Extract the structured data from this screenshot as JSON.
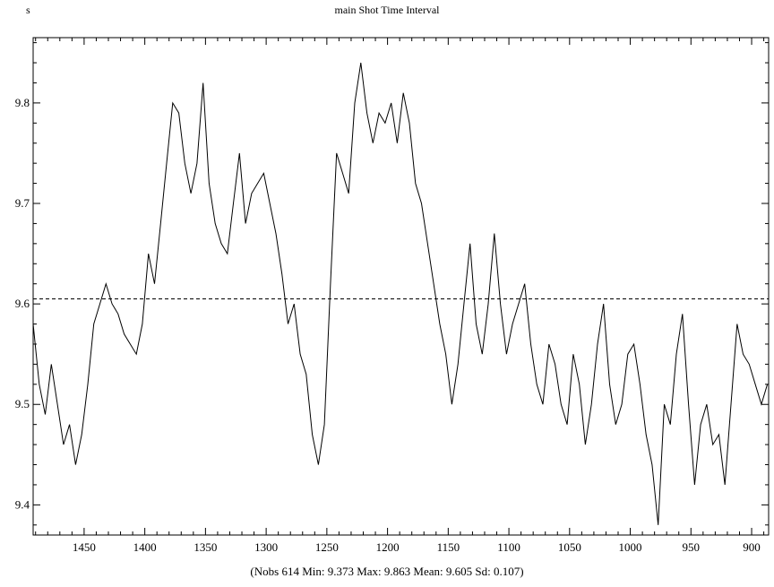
{
  "chart_data": {
    "type": "line",
    "title": "main Shot Time Interval",
    "ylabel": "s",
    "xlabel": "",
    "footer": "(Nobs 614 Min: 9.373 Max: 9.863 Mean: 9.605 Sd: 0.107)",
    "xlim": [
      1492,
      886
    ],
    "ylim": [
      9.37,
      9.865
    ],
    "x_ticks": [
      1450,
      1400,
      1350,
      1300,
      1250,
      1200,
      1150,
      1100,
      1050,
      1000,
      950,
      900
    ],
    "y_ticks": [
      9.4,
      9.5,
      9.6,
      9.7,
      9.8
    ],
    "mean_line": 9.605,
    "series": [
      {
        "color": "#000000",
        "x": [
          1492,
          1487,
          1482,
          1477,
          1472,
          1467,
          1462,
          1457,
          1452,
          1447,
          1442,
          1437,
          1432,
          1427,
          1422,
          1417,
          1412,
          1407,
          1402,
          1397,
          1392,
          1387,
          1382,
          1377,
          1372,
          1367,
          1362,
          1357,
          1352,
          1347,
          1342,
          1337,
          1332,
          1327,
          1322,
          1317,
          1312,
          1307,
          1302,
          1297,
          1292,
          1287,
          1282,
          1277,
          1272,
          1267,
          1262,
          1257,
          1252,
          1247,
          1242,
          1237,
          1232,
          1227,
          1222,
          1217,
          1212,
          1207,
          1202,
          1197,
          1192,
          1187,
          1182,
          1177,
          1172,
          1167,
          1162,
          1157,
          1152,
          1147,
          1142,
          1137,
          1132,
          1127,
          1122,
          1117,
          1112,
          1107,
          1102,
          1097,
          1092,
          1087,
          1082,
          1077,
          1072,
          1067,
          1062,
          1057,
          1052,
          1047,
          1042,
          1037,
          1032,
          1027,
          1022,
          1017,
          1012,
          1007,
          1002,
          997,
          992,
          987,
          982,
          977,
          972,
          967,
          962,
          957,
          952,
          947,
          942,
          937,
          932,
          927,
          922,
          917,
          912,
          907,
          902,
          897,
          892,
          887
        ],
        "values": [
          9.58,
          9.52,
          9.49,
          9.54,
          9.5,
          9.46,
          9.48,
          9.44,
          9.47,
          9.52,
          9.58,
          9.6,
          9.62,
          9.6,
          9.59,
          9.57,
          9.56,
          9.55,
          9.58,
          9.65,
          9.62,
          9.68,
          9.74,
          9.8,
          9.79,
          9.74,
          9.71,
          9.74,
          9.82,
          9.72,
          9.68,
          9.66,
          9.65,
          9.7,
          9.75,
          9.68,
          9.71,
          9.72,
          9.73,
          9.7,
          9.67,
          9.63,
          9.58,
          9.6,
          9.55,
          9.53,
          9.47,
          9.44,
          9.48,
          9.62,
          9.75,
          9.73,
          9.71,
          9.8,
          9.84,
          9.79,
          9.76,
          9.79,
          9.78,
          9.8,
          9.76,
          9.81,
          9.78,
          9.72,
          9.7,
          9.66,
          9.62,
          9.58,
          9.55,
          9.5,
          9.54,
          9.6,
          9.66,
          9.58,
          9.55,
          9.6,
          9.67,
          9.6,
          9.55,
          9.58,
          9.6,
          9.62,
          9.56,
          9.52,
          9.5,
          9.56,
          9.54,
          9.5,
          9.48,
          9.55,
          9.52,
          9.46,
          9.5,
          9.56,
          9.6,
          9.52,
          9.48,
          9.5,
          9.55,
          9.56,
          9.52,
          9.47,
          9.44,
          9.38,
          9.5,
          9.48,
          9.55,
          9.59,
          9.5,
          9.42,
          9.48,
          9.5,
          9.46,
          9.47,
          9.42,
          9.5,
          9.58,
          9.55,
          9.54,
          9.52,
          9.5,
          9.52
        ]
      }
    ]
  }
}
